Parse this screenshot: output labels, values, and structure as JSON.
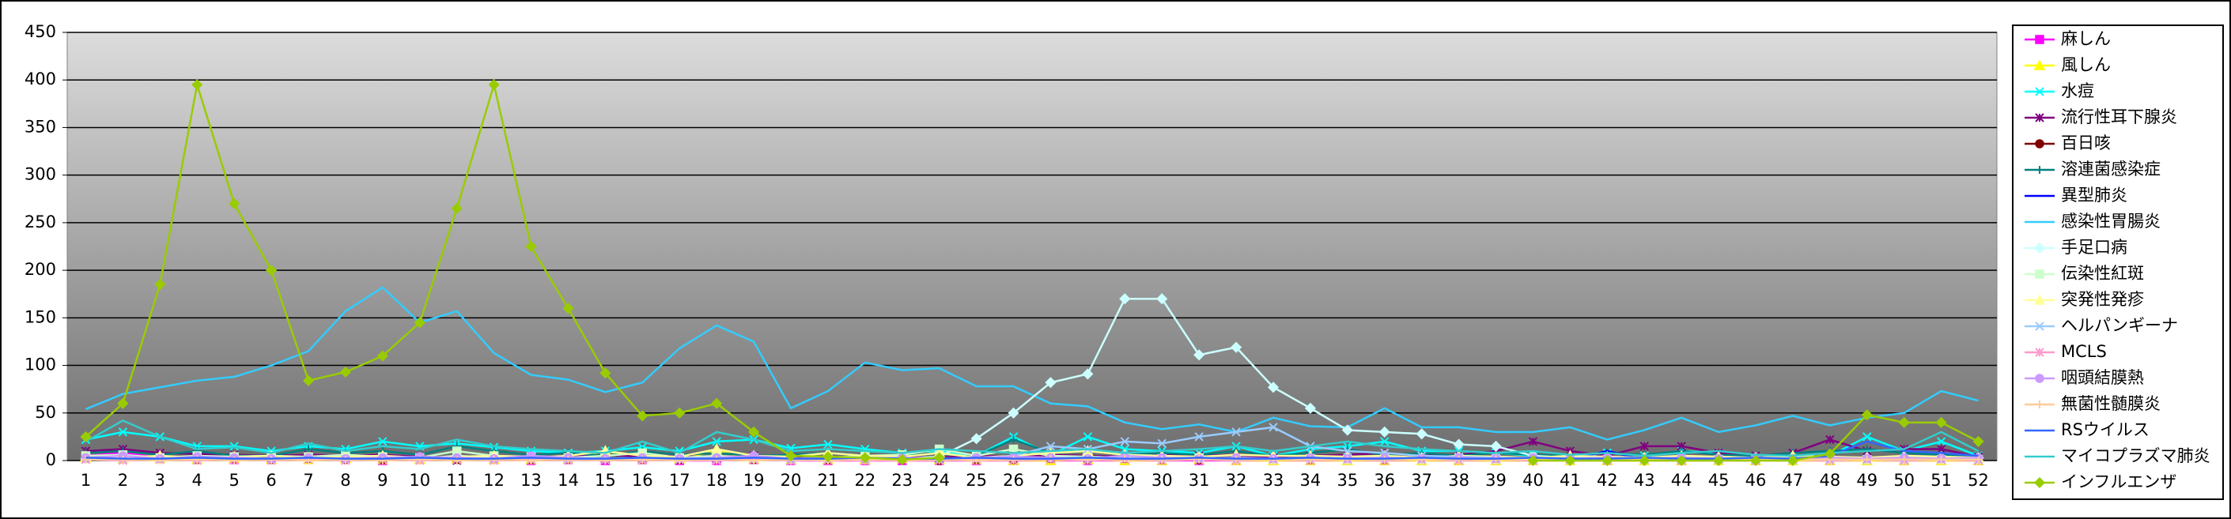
{
  "chart_data": {
    "type": "line",
    "categories": [
      "1",
      "2",
      "3",
      "4",
      "5",
      "6",
      "7",
      "8",
      "9",
      "10",
      "11",
      "12",
      "13",
      "14",
      "15",
      "16",
      "17",
      "18",
      "19",
      "20",
      "21",
      "22",
      "23",
      "24",
      "25",
      "26",
      "27",
      "28",
      "29",
      "30",
      "31",
      "32",
      "33",
      "34",
      "35",
      "36",
      "37",
      "38",
      "39",
      "40",
      "41",
      "42",
      "43",
      "44",
      "45",
      "46",
      "47",
      "48",
      "49",
      "50",
      "51",
      "52"
    ],
    "ylim": [
      0,
      450
    ],
    "yticks": [
      0,
      50,
      100,
      150,
      200,
      250,
      300,
      350,
      400,
      450
    ],
    "grid": true,
    "legend": "right",
    "series": [
      {
        "name": "麻しん",
        "color": "#ff00ff",
        "marker": "square",
        "values": [
          5,
          8,
          3,
          2,
          1,
          2,
          1,
          2,
          0,
          1,
          2,
          1,
          0,
          1,
          0,
          1,
          0,
          0,
          1,
          0,
          0,
          0,
          0,
          0,
          0,
          0,
          0,
          0,
          0,
          0,
          0,
          0,
          0,
          0,
          0,
          0,
          0,
          0,
          0,
          0,
          0,
          0,
          0,
          0,
          0,
          0,
          0,
          0,
          0,
          0,
          0,
          0
        ]
      },
      {
        "name": "風しん",
        "color": "#ffff00",
        "marker": "triangle",
        "values": [
          3,
          2,
          2,
          1,
          2,
          1,
          1,
          2,
          1,
          1,
          2,
          1,
          1,
          2,
          10,
          3,
          2,
          10,
          2,
          1,
          1,
          1,
          2,
          1,
          1,
          0,
          0,
          1,
          0,
          0,
          1,
          0,
          0,
          0,
          0,
          0,
          0,
          0,
          0,
          0,
          0,
          0,
          0,
          0,
          0,
          0,
          0,
          0,
          0,
          0,
          0,
          0
        ]
      },
      {
        "name": "水痘",
        "color": "#00ffff",
        "marker": "x",
        "values": [
          22,
          30,
          25,
          15,
          15,
          10,
          15,
          12,
          20,
          15,
          18,
          14,
          10,
          8,
          10,
          14,
          10,
          20,
          22,
          13,
          17,
          12,
          8,
          10,
          5,
          25,
          6,
          25,
          12,
          10,
          8,
          15,
          5,
          12,
          15,
          20,
          10,
          10,
          8,
          5,
          3,
          8,
          5,
          10,
          8,
          5,
          3,
          5,
          25,
          10,
          20,
          5
        ]
      },
      {
        "name": "流行性耳下腺炎",
        "color": "#800080",
        "marker": "star",
        "values": [
          10,
          12,
          8,
          7,
          6,
          5,
          6,
          5,
          6,
          4,
          0,
          5,
          3,
          5,
          6,
          4,
          5,
          3,
          5,
          4,
          3,
          5,
          4,
          3,
          5,
          4,
          6,
          5,
          4,
          6,
          5,
          6,
          3,
          5,
          6,
          8,
          5,
          6,
          10,
          20,
          10,
          5,
          15,
          15,
          8,
          5,
          8,
          22,
          10,
          12,
          12,
          4
        ]
      },
      {
        "name": "百日咳",
        "color": "#800000",
        "marker": "circle",
        "values": [
          2,
          3,
          2,
          1,
          2,
          1,
          2,
          1,
          1,
          2,
          1,
          2,
          1,
          1,
          2,
          1,
          1,
          2,
          1,
          1,
          1,
          2,
          1,
          0,
          1,
          1,
          2,
          1,
          2,
          1,
          1,
          2,
          1,
          1,
          2,
          1,
          1,
          2,
          1,
          1,
          1,
          2,
          1,
          1,
          2,
          1,
          1,
          2,
          1,
          1,
          1,
          1
        ]
      },
      {
        "name": "溶連菌感染症",
        "color": "#008080",
        "marker": "plus",
        "values": [
          8,
          10,
          6,
          10,
          5,
          5,
          12,
          8,
          10,
          6,
          15,
          10,
          6,
          8,
          5,
          10,
          6,
          8,
          5,
          6,
          8,
          5,
          5,
          12,
          5,
          22,
          8,
          10,
          6,
          8,
          6,
          10,
          5,
          8,
          12,
          6,
          8,
          5,
          8,
          6,
          5,
          8,
          6,
          10,
          6,
          5,
          8,
          10,
          12,
          8,
          6,
          5
        ]
      },
      {
        "name": "異型肺炎",
        "color": "#0000ff",
        "marker": "none",
        "values": [
          2,
          3,
          2,
          2,
          1,
          2,
          2,
          1,
          1,
          2,
          1,
          1,
          2,
          1,
          1,
          2,
          1,
          1,
          1,
          2,
          1,
          1,
          1,
          1,
          1,
          2,
          1,
          1,
          1,
          1,
          1,
          1,
          1,
          1,
          1,
          1,
          1,
          1,
          1,
          1,
          1,
          10,
          1,
          1,
          1,
          1,
          1,
          1,
          1,
          1,
          1,
          1
        ]
      },
      {
        "name": "感染性胃腸炎",
        "color": "#33ccff",
        "marker": "none",
        "values": [
          54,
          70,
          77,
          84,
          88,
          100,
          115,
          157,
          182,
          145,
          157,
          113,
          90,
          85,
          72,
          82,
          118,
          142,
          125,
          55,
          73,
          103,
          95,
          97,
          78,
          78,
          60,
          57,
          40,
          33,
          38,
          30,
          45,
          36,
          35,
          55,
          35,
          35,
          30,
          30,
          35,
          22,
          32,
          45,
          30,
          37,
          47,
          37,
          45,
          50,
          73,
          63
        ]
      },
      {
        "name": "手足口病",
        "color": "#ccffff",
        "marker": "diamond",
        "values": [
          2,
          3,
          2,
          4,
          3,
          2,
          3,
          2,
          3,
          2,
          5,
          3,
          2,
          3,
          2,
          3,
          2,
          3,
          2,
          1,
          2,
          3,
          2,
          4,
          23,
          50,
          82,
          91,
          170,
          170,
          111,
          119,
          77,
          55,
          32,
          30,
          28,
          17,
          15,
          5,
          3,
          3,
          3,
          3,
          3,
          3,
          3,
          3,
          3,
          3,
          3,
          3
        ]
      },
      {
        "name": "伝染性紅斑",
        "color": "#ccffcc",
        "marker": "square",
        "values": [
          5,
          6,
          3,
          5,
          4,
          5,
          4,
          6,
          4,
          3,
          10,
          5,
          4,
          3,
          5,
          8,
          3,
          5,
          3,
          2,
          3,
          5,
          6,
          12,
          5,
          12,
          5,
          4,
          3,
          2,
          3,
          2,
          1,
          2,
          1,
          2,
          1,
          2,
          1,
          1,
          1,
          1,
          1,
          1,
          1,
          1,
          1,
          1,
          1,
          1,
          1,
          1
        ]
      },
      {
        "name": "突発性発疹",
        "color": "#ffff99",
        "marker": "triangle",
        "values": [
          4,
          3,
          5,
          3,
          4,
          5,
          3,
          4,
          5,
          3,
          4,
          5,
          3,
          5,
          10,
          5,
          4,
          12,
          5,
          4,
          8,
          5,
          4,
          8,
          3,
          5,
          8,
          10,
          6,
          5,
          4,
          6,
          5,
          5,
          4,
          5,
          3,
          5,
          4,
          3,
          5,
          4,
          3,
          5,
          4,
          3,
          5,
          4,
          3,
          5,
          4,
          3
        ]
      },
      {
        "name": "ヘルパンギーナ",
        "color": "#99ccff",
        "marker": "x",
        "values": [
          1,
          1,
          1,
          1,
          1,
          1,
          1,
          1,
          1,
          1,
          1,
          1,
          1,
          1,
          1,
          1,
          1,
          1,
          1,
          1,
          1,
          1,
          1,
          1,
          2,
          5,
          15,
          12,
          20,
          18,
          25,
          30,
          35,
          15,
          10,
          8,
          5,
          4,
          3,
          2,
          1,
          1,
          1,
          1,
          1,
          1,
          1,
          1,
          1,
          1,
          1,
          1
        ]
      },
      {
        "name": "MCLS",
        "color": "#ff99cc",
        "marker": "star",
        "values": [
          1,
          0,
          1,
          0,
          1,
          0,
          1,
          0,
          1,
          0,
          1,
          0,
          1,
          0,
          1,
          0,
          1,
          0,
          1,
          0,
          1,
          0,
          1,
          0,
          1,
          0,
          1,
          0,
          1,
          0,
          1,
          0,
          1,
          0,
          1,
          0,
          1,
          0,
          1,
          0,
          1,
          0,
          1,
          0,
          1,
          0,
          1,
          0,
          1,
          0,
          1,
          0
        ]
      },
      {
        "name": "咽頭結膜熱",
        "color": "#cc99ff",
        "marker": "circle",
        "values": [
          3,
          5,
          2,
          4,
          3,
          2,
          3,
          2,
          3,
          4,
          3,
          2,
          5,
          3,
          2,
          3,
          2,
          3,
          5,
          2,
          3,
          2,
          3,
          2,
          3,
          4,
          3,
          2,
          5,
          3,
          2,
          3,
          2,
          3,
          2,
          3,
          2,
          3,
          2,
          3,
          2,
          3,
          2,
          3,
          2,
          3,
          2,
          3,
          2,
          3,
          2,
          3
        ]
      },
      {
        "name": "無菌性髄膜炎",
        "color": "#ffcc99",
        "marker": "plus",
        "values": [
          1,
          1,
          0,
          1,
          0,
          1,
          0,
          1,
          0,
          1,
          0,
          1,
          0,
          1,
          0,
          1,
          0,
          1,
          0,
          1,
          0,
          1,
          0,
          1,
          0,
          1,
          2,
          1,
          2,
          1,
          2,
          1,
          1,
          1,
          1,
          1,
          1,
          1,
          1,
          1,
          1,
          1,
          1,
          1,
          1,
          1,
          1,
          1,
          1,
          1,
          1,
          1
        ]
      },
      {
        "name": "RSウイルス",
        "color": "#3366ff",
        "marker": "none",
        "values": [
          3,
          2,
          2,
          3,
          2,
          2,
          3,
          2,
          2,
          3,
          2,
          2,
          3,
          2,
          2,
          3,
          2,
          2,
          3,
          2,
          2,
          3,
          2,
          2,
          3,
          2,
          2,
          3,
          2,
          2,
          3,
          2,
          2,
          3,
          2,
          2,
          3,
          2,
          2,
          3,
          2,
          2,
          3,
          2,
          2,
          3,
          2,
          5,
          20,
          10,
          8,
          5
        ]
      },
      {
        "name": "マイコプラズマ肺炎",
        "color": "#33cccc",
        "marker": "none",
        "values": [
          20,
          42,
          25,
          12,
          14,
          8,
          18,
          10,
          15,
          12,
          22,
          15,
          12,
          10,
          8,
          20,
          8,
          30,
          22,
          10,
          12,
          10,
          8,
          12,
          10,
          8,
          10,
          12,
          8,
          10,
          12,
          15,
          10,
          15,
          20,
          15,
          12,
          10,
          8,
          10,
          6,
          8,
          5,
          8,
          10,
          6,
          5,
          8,
          10,
          12,
          30,
          10
        ]
      },
      {
        "name": "インフルエンザ",
        "color": "#99cc00",
        "marker": "diamond",
        "values": [
          25,
          60,
          185,
          395,
          270,
          200,
          84,
          93,
          110,
          145,
          265,
          395,
          225,
          160,
          92,
          47,
          50,
          60,
          30,
          5,
          4,
          3,
          1,
          3,
          null,
          null,
          null,
          null,
          null,
          null,
          null,
          null,
          null,
          null,
          null,
          null,
          null,
          null,
          null,
          0,
          0,
          0,
          0,
          0,
          0,
          0,
          0,
          7,
          48,
          40,
          40,
          20
        ]
      }
    ]
  }
}
